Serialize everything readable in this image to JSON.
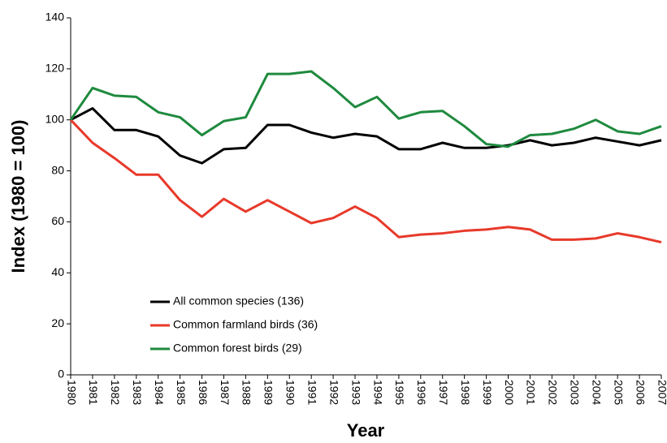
{
  "chart_data": {
    "type": "line",
    "x_label": "Year",
    "y_label": "Index (1980 = 100)",
    "categories": [
      "1980",
      "1981",
      "1982",
      "1983",
      "1984",
      "1985",
      "1986",
      "1987",
      "1988",
      "1989",
      "1990",
      "1991",
      "1992",
      "1993",
      "1994",
      "1995",
      "1996",
      "1997",
      "1998",
      "1999",
      "2000",
      "2001",
      "2002",
      "2003",
      "2004",
      "2005",
      "2006",
      "2007"
    ],
    "series": [
      {
        "name": "All common species (136)",
        "color": "#000000",
        "values": [
          100,
          104.5,
          96,
          96,
          93.5,
          86,
          83,
          88.5,
          89,
          98,
          98,
          95,
          93,
          94.5,
          93.5,
          88.5,
          88.5,
          91,
          89,
          89,
          90,
          92,
          90,
          91,
          93,
          91.5,
          90,
          92
        ]
      },
      {
        "name": "Common farmland birds (36)",
        "color": "#e8392a",
        "values": [
          100,
          91,
          85,
          78.5,
          78.5,
          68.5,
          62,
          69,
          64,
          68.5,
          64,
          59.5,
          61.5,
          66,
          61.5,
          54,
          55,
          55.5,
          56.5,
          57,
          58,
          57,
          53,
          53,
          53.5,
          55.5,
          54,
          52
        ]
      },
      {
        "name": "Common forest birds (29)",
        "color": "#1e8a3e",
        "values": [
          100,
          112.5,
          109.5,
          109,
          103,
          101,
          94,
          99.5,
          101,
          118,
          118,
          119,
          112.5,
          105,
          109,
          100.5,
          103,
          103.5,
          97.5,
          90.5,
          89.5,
          94,
          94.5,
          96.5,
          100,
          95.5,
          94.5,
          97.5
        ]
      }
    ],
    "ylim": [
      0,
      140
    ],
    "yticks": [
      0,
      20,
      40,
      60,
      80,
      100,
      120,
      140
    ],
    "grid": false,
    "legend": "lower-left"
  }
}
